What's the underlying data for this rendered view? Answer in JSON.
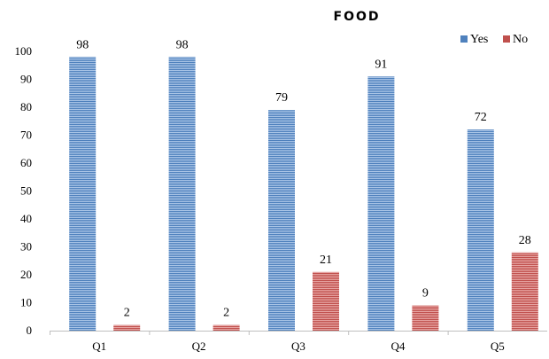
{
  "chart_data": {
    "type": "bar",
    "title": "FOOD",
    "categories": [
      "Q1",
      "Q2",
      "Q3",
      "Q4",
      "Q5"
    ],
    "series": [
      {
        "name": "Yes",
        "values": [
          98,
          98,
          79,
          91,
          72
        ],
        "color": "#4f81bd"
      },
      {
        "name": "No",
        "values": [
          2,
          2,
          21,
          9,
          28
        ],
        "color": "#c0504d"
      }
    ],
    "ylim": [
      0,
      100
    ],
    "yticks": [
      0,
      10,
      20,
      30,
      40,
      50,
      60,
      70,
      80,
      90,
      100
    ],
    "xlabel": "",
    "ylabel": "",
    "grid": false,
    "legend_position": "top-right"
  }
}
